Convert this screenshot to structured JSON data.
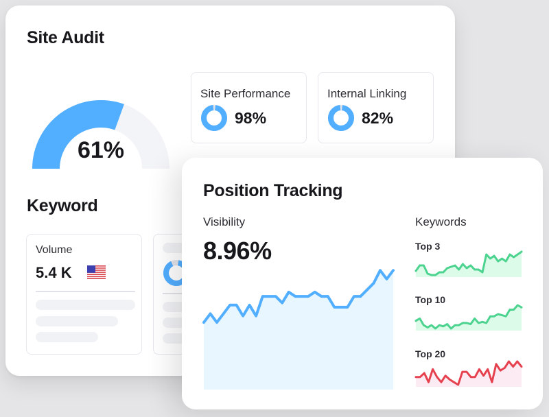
{
  "site_audit": {
    "title": "Site Audit",
    "gauge": {
      "value": 61,
      "label": "61%",
      "color": "#52aeff",
      "track_color": "#f3f4f8"
    },
    "metrics": [
      {
        "label": "Site Performance",
        "value": "98%",
        "percent": 98
      },
      {
        "label": "Internal Linking",
        "value": "82%",
        "percent": 82
      }
    ]
  },
  "keyword": {
    "title": "Keyword",
    "volume_card": {
      "label": "Volume",
      "value": "5.4 K",
      "flag_icon": "us-flag-icon"
    }
  },
  "position_tracking": {
    "title": "Position Tracking",
    "visibility": {
      "label": "Visibility",
      "value": "8.96%"
    },
    "keywords": {
      "title": "Keywords",
      "series": [
        {
          "label": "Top 3",
          "color": "#4cd38f",
          "fill": "#dcfbe8"
        },
        {
          "label": "Top 10",
          "color": "#4cd38f",
          "fill": "#dcfbe8"
        },
        {
          "label": "Top 20",
          "color": "#e5414f",
          "fill": "#fdebf4"
        }
      ]
    }
  },
  "chart_data": [
    {
      "type": "area",
      "title": "Visibility",
      "color": "#52aeff",
      "fill": "#e8f6ff",
      "x": [
        0,
        1,
        2,
        3,
        4,
        5,
        6,
        7,
        8,
        9,
        10,
        11,
        12,
        13,
        14,
        15,
        16,
        17,
        18,
        19,
        20,
        21,
        22,
        23,
        24,
        25,
        26,
        27,
        28,
        29
      ],
      "values": [
        4.2,
        4.6,
        4.2,
        4.6,
        5.0,
        5.0,
        4.5,
        5.0,
        4.5,
        5.4,
        5.4,
        5.4,
        5.1,
        5.6,
        5.4,
        5.4,
        5.4,
        5.6,
        5.4,
        5.4,
        4.9,
        4.9,
        4.9,
        5.4,
        5.4,
        5.7,
        6.0,
        6.6,
        6.2,
        6.6
      ]
    },
    {
      "type": "area",
      "title": "Top 3",
      "values": [
        3,
        5,
        5,
        2,
        1.5,
        1.5,
        2.5,
        2.5,
        4,
        4.5,
        5,
        3.5,
        5.5,
        4,
        5,
        3.5,
        3.5,
        2.5,
        9,
        7.5,
        8.5,
        6.5,
        7.5,
        6.5,
        9,
        8,
        9,
        10
      ]
    },
    {
      "type": "area",
      "title": "Top 10",
      "values": [
        5,
        6,
        3,
        2,
        3,
        1.5,
        3,
        2.5,
        3.5,
        1.5,
        3,
        3,
        4,
        4,
        3.5,
        6,
        4,
        4.5,
        4,
        7,
        7,
        8,
        7.5,
        7,
        10,
        10,
        12,
        11
      ]
    },
    {
      "type": "area",
      "title": "Top 20",
      "values": [
        4,
        4,
        5.5,
        2,
        7,
        4,
        2,
        4.5,
        3,
        2,
        1,
        6,
        6,
        4,
        4,
        7,
        4.5,
        7,
        2,
        9,
        6.5,
        7.5,
        10,
        8,
        10,
        8
      ]
    }
  ]
}
